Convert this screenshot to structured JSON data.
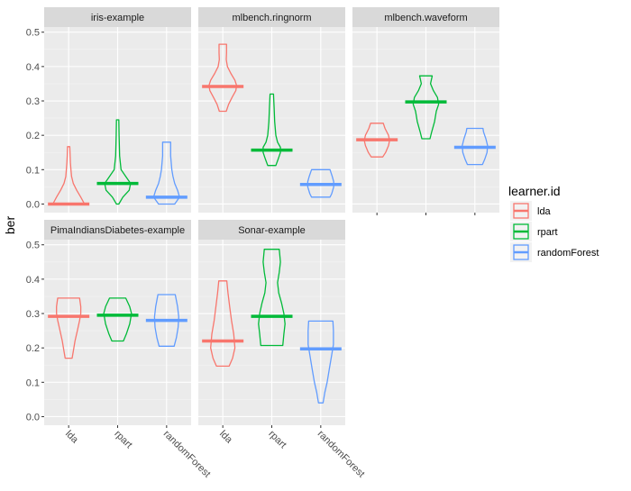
{
  "chart_data": {
    "type": "violin",
    "ylabel": "ber",
    "xlabel": "",
    "ylim": [
      -0.025,
      0.515
    ],
    "yticks": [
      0.0,
      0.1,
      0.2,
      0.3,
      0.4,
      0.5
    ],
    "ytick_labels": [
      "0.0",
      "0.1",
      "0.2",
      "0.3",
      "0.4",
      "0.5"
    ],
    "categories": [
      "lda",
      "rpart",
      "randomForest"
    ],
    "colors": {
      "lda": "#F8766D",
      "rpart": "#00BA38",
      "randomForest": "#619CFF"
    },
    "legend": {
      "title": "learner.id",
      "position": "right",
      "entries": [
        "lda",
        "rpart",
        "randomForest"
      ]
    },
    "panels": [
      {
        "task": "iris-example",
        "violins": [
          {
            "learner": "lda",
            "median": 0.0,
            "shape": [
              [
                0.0,
                0.55
              ],
              [
                0.02,
                0.42
              ],
              [
                0.04,
                0.28
              ],
              [
                0.06,
                0.16
              ],
              [
                0.08,
                0.1
              ],
              [
                0.1,
                0.08
              ],
              [
                0.12,
                0.06
              ],
              [
                0.14,
                0.05
              ],
              [
                0.167,
                0.04
              ]
            ]
          },
          {
            "learner": "rpart",
            "median": 0.06,
            "shape": [
              [
                0.0,
                0.04
              ],
              [
                0.02,
                0.18
              ],
              [
                0.04,
                0.4
              ],
              [
                0.06,
                0.45
              ],
              [
                0.08,
                0.28
              ],
              [
                0.1,
                0.12
              ],
              [
                0.14,
                0.07
              ],
              [
                0.2,
                0.05
              ],
              [
                0.245,
                0.04
              ]
            ]
          },
          {
            "learner": "randomForest",
            "median": 0.02,
            "shape": [
              [
                0.0,
                0.28
              ],
              [
                0.02,
                0.45
              ],
              [
                0.04,
                0.38
              ],
              [
                0.06,
                0.28
              ],
              [
                0.08,
                0.22
              ],
              [
                0.1,
                0.18
              ],
              [
                0.14,
                0.14
              ],
              [
                0.18,
                0.14
              ]
            ]
          }
        ]
      },
      {
        "task": "mlbench.ringnorm",
        "violins": [
          {
            "learner": "lda",
            "median": 0.342,
            "shape": [
              [
                0.27,
                0.12
              ],
              [
                0.29,
                0.2
              ],
              [
                0.31,
                0.32
              ],
              [
                0.33,
                0.45
              ],
              [
                0.345,
                0.48
              ],
              [
                0.36,
                0.42
              ],
              [
                0.38,
                0.28
              ],
              [
                0.4,
                0.16
              ],
              [
                0.42,
                0.12
              ],
              [
                0.44,
                0.13
              ],
              [
                0.465,
                0.13
              ]
            ]
          },
          {
            "learner": "rpart",
            "median": 0.157,
            "shape": [
              [
                0.112,
                0.14
              ],
              [
                0.13,
                0.22
              ],
              [
                0.15,
                0.3
              ],
              [
                0.165,
                0.3
              ],
              [
                0.18,
                0.2
              ],
              [
                0.2,
                0.14
              ],
              [
                0.24,
                0.1
              ],
              [
                0.28,
                0.08
              ],
              [
                0.32,
                0.06
              ]
            ]
          },
          {
            "learner": "randomForest",
            "median": 0.057,
            "shape": [
              [
                0.02,
                0.32
              ],
              [
                0.03,
                0.38
              ],
              [
                0.05,
                0.45
              ],
              [
                0.065,
                0.45
              ],
              [
                0.08,
                0.4
              ],
              [
                0.1,
                0.32
              ]
            ]
          }
        ]
      },
      {
        "task": "mlbench.waveform",
        "violins": [
          {
            "learner": "lda",
            "median": 0.187,
            "shape": [
              [
                0.137,
                0.2
              ],
              [
                0.15,
                0.3
              ],
              [
                0.17,
                0.4
              ],
              [
                0.185,
                0.44
              ],
              [
                0.2,
                0.4
              ],
              [
                0.22,
                0.28
              ],
              [
                0.235,
                0.22
              ]
            ]
          },
          {
            "learner": "rpart",
            "median": 0.297,
            "shape": [
              [
                0.19,
                0.14
              ],
              [
                0.21,
                0.2
              ],
              [
                0.24,
                0.3
              ],
              [
                0.27,
                0.36
              ],
              [
                0.29,
                0.44
              ],
              [
                0.31,
                0.4
              ],
              [
                0.33,
                0.26
              ],
              [
                0.35,
                0.16
              ],
              [
                0.373,
                0.22
              ]
            ]
          },
          {
            "learner": "randomForest",
            "median": 0.165,
            "shape": [
              [
                0.115,
                0.26
              ],
              [
                0.13,
                0.34
              ],
              [
                0.15,
                0.42
              ],
              [
                0.17,
                0.44
              ],
              [
                0.19,
                0.38
              ],
              [
                0.21,
                0.3
              ],
              [
                0.22,
                0.28
              ]
            ]
          }
        ]
      },
      {
        "task": "PimaIndiansDiabetes-example",
        "violins": [
          {
            "learner": "lda",
            "median": 0.292,
            "shape": [
              [
                0.17,
                0.12
              ],
              [
                0.19,
                0.16
              ],
              [
                0.22,
                0.22
              ],
              [
                0.25,
                0.3
              ],
              [
                0.28,
                0.38
              ],
              [
                0.3,
                0.42
              ],
              [
                0.32,
                0.42
              ],
              [
                0.345,
                0.38
              ]
            ]
          },
          {
            "learner": "rpart",
            "median": 0.295,
            "shape": [
              [
                0.22,
                0.2
              ],
              [
                0.24,
                0.3
              ],
              [
                0.27,
                0.42
              ],
              [
                0.3,
                0.48
              ],
              [
                0.32,
                0.42
              ],
              [
                0.345,
                0.28
              ]
            ]
          },
          {
            "learner": "randomForest",
            "median": 0.28,
            "shape": [
              [
                0.205,
                0.26
              ],
              [
                0.23,
                0.34
              ],
              [
                0.26,
                0.4
              ],
              [
                0.29,
                0.42
              ],
              [
                0.32,
                0.38
              ],
              [
                0.355,
                0.3
              ]
            ]
          }
        ]
      },
      {
        "task": "Sonar-example",
        "violins": [
          {
            "learner": "lda",
            "median": 0.22,
            "shape": [
              [
                0.147,
                0.22
              ],
              [
                0.17,
                0.34
              ],
              [
                0.2,
                0.42
              ],
              [
                0.24,
                0.38
              ],
              [
                0.28,
                0.3
              ],
              [
                0.32,
                0.24
              ],
              [
                0.36,
                0.18
              ],
              [
                0.395,
                0.14
              ]
            ]
          },
          {
            "learner": "rpart",
            "median": 0.292,
            "shape": [
              [
                0.207,
                0.38
              ],
              [
                0.24,
                0.42
              ],
              [
                0.27,
                0.46
              ],
              [
                0.3,
                0.42
              ],
              [
                0.33,
                0.34
              ],
              [
                0.36,
                0.24
              ],
              [
                0.39,
                0.2
              ],
              [
                0.42,
                0.26
              ],
              [
                0.45,
                0.3
              ],
              [
                0.487,
                0.26
              ]
            ]
          },
          {
            "learner": "randomForest",
            "median": 0.197,
            "shape": [
              [
                0.04,
                0.08
              ],
              [
                0.07,
                0.14
              ],
              [
                0.1,
                0.22
              ],
              [
                0.14,
                0.3
              ],
              [
                0.18,
                0.38
              ],
              [
                0.21,
                0.44
              ],
              [
                0.25,
                0.44
              ],
              [
                0.278,
                0.42
              ]
            ]
          }
        ]
      }
    ]
  }
}
